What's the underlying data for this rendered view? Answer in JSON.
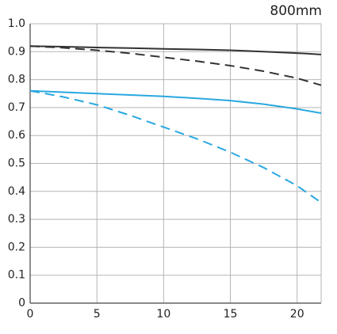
{
  "chart_data": {
    "type": "line",
    "title": "800mm",
    "x": [
      0,
      2.5,
      5,
      7.5,
      10,
      12.5,
      15,
      17.5,
      20,
      21.8
    ],
    "series": [
      {
        "color": "#333333",
        "dash": false,
        "values": [
          0.92,
          0.918,
          0.915,
          0.913,
          0.91,
          0.908,
          0.905,
          0.9,
          0.895,
          0.89
        ]
      },
      {
        "color": "#333333",
        "dash": true,
        "values": [
          0.92,
          0.914,
          0.905,
          0.894,
          0.88,
          0.866,
          0.85,
          0.83,
          0.805,
          0.78
        ]
      },
      {
        "color": "#29a8e0",
        "dash": false,
        "values": [
          0.76,
          0.755,
          0.75,
          0.745,
          0.74,
          0.733,
          0.725,
          0.712,
          0.695,
          0.68
        ]
      },
      {
        "color": "#29a8e0",
        "dash": true,
        "values": [
          0.76,
          0.738,
          0.71,
          0.672,
          0.63,
          0.588,
          0.54,
          0.485,
          0.42,
          0.36
        ]
      }
    ],
    "xlim": [
      0,
      21.8
    ],
    "ylim": [
      0,
      1
    ],
    "xticks": [
      0,
      5,
      10,
      15,
      20
    ],
    "yticks": [
      0,
      0.1,
      0.2,
      0.3,
      0.4,
      0.5,
      0.6,
      0.7,
      0.8,
      0.9,
      {
        "value": 1,
        "label": "1.0"
      }
    ],
    "grid": true
  }
}
